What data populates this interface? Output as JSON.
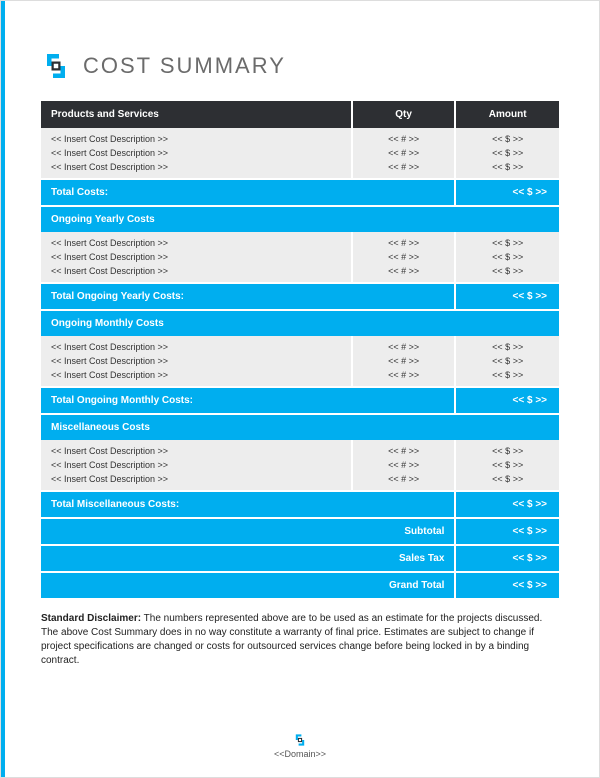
{
  "title": "COST SUMMARY",
  "colors": {
    "accent": "#00aeef",
    "header_bg": "#2d2f33",
    "row_bg": "#ededed",
    "white": "#ffffff",
    "title_color": "#6b6b6b"
  },
  "table": {
    "headers": {
      "desc": "Products and Services",
      "qty": "Qty",
      "amount": "Amount"
    },
    "sections": [
      {
        "rows": [
          {
            "desc": "<< Insert Cost Description >>",
            "qty": "<< # >>",
            "amount": "<< $ >>"
          },
          {
            "desc": "<< Insert Cost Description >>",
            "qty": "<< # >>",
            "amount": "<< $ >>"
          },
          {
            "desc": "<< Insert Cost Description >>",
            "qty": "<< # >>",
            "amount": "<< $ >>"
          }
        ],
        "total_label": "Total Costs:",
        "total_amount": "<< $ >>"
      },
      {
        "heading": "Ongoing Yearly Costs",
        "rows": [
          {
            "desc": "<< Insert Cost Description >>",
            "qty": "<< # >>",
            "amount": "<< $ >>"
          },
          {
            "desc": "<< Insert Cost Description >>",
            "qty": "<< # >>",
            "amount": "<< $ >>"
          },
          {
            "desc": "<< Insert Cost Description >>",
            "qty": "<< # >>",
            "amount": "<< $ >>"
          }
        ],
        "total_label": "Total Ongoing Yearly Costs:",
        "total_amount": "<< $ >>"
      },
      {
        "heading": "Ongoing Monthly Costs",
        "rows": [
          {
            "desc": "<< Insert Cost Description >>",
            "qty": "<< # >>",
            "amount": "<< $ >>"
          },
          {
            "desc": "<< Insert Cost Description >>",
            "qty": "<< # >>",
            "amount": "<< $ >>"
          },
          {
            "desc": "<< Insert Cost Description >>",
            "qty": "<< # >>",
            "amount": "<< $ >>"
          }
        ],
        "total_label": "Total Ongoing Monthly Costs:",
        "total_amount": "<< $ >>"
      },
      {
        "heading": "Miscellaneous Costs",
        "rows": [
          {
            "desc": "<< Insert Cost Description >>",
            "qty": "<< # >>",
            "amount": "<< $ >>"
          },
          {
            "desc": "<< Insert Cost Description >>",
            "qty": "<< # >>",
            "amount": "<< $ >>"
          },
          {
            "desc": "<< Insert Cost Description >>",
            "qty": "<< # >>",
            "amount": "<< $ >>"
          }
        ],
        "total_label": "Total Miscellaneous Costs:",
        "total_amount": "<< $ >>"
      }
    ],
    "summary": [
      {
        "label": "Subtotal",
        "amount": "<< $ >>"
      },
      {
        "label": "Sales Tax",
        "amount": "<< $ >>"
      },
      {
        "label": "Grand Total",
        "amount": "<< $ >>"
      }
    ]
  },
  "disclaimer": {
    "label": "Standard Disclaimer:",
    "text": "The numbers represented above are to be used as an estimate for the projects discussed. The above Cost Summary does in no way constitute a warranty of final price.  Estimates are subject to change if project specifications are changed or costs for outsourced services change before being locked in by a binding contract."
  },
  "footer": "<<Domain>>"
}
